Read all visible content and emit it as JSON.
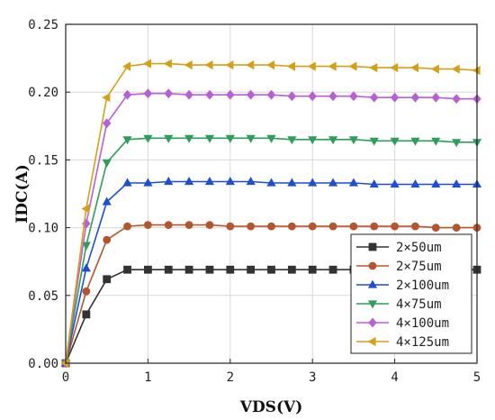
{
  "chart_data": {
    "type": "line",
    "xlabel": "VDS(V)",
    "ylabel": "IDC(A)",
    "xlim": [
      0,
      5
    ],
    "ylim": [
      0,
      0.25
    ],
    "xticks": [
      "0",
      "1",
      "2",
      "3",
      "4",
      "5"
    ],
    "yticks": [
      "0.00",
      "0.05",
      "0.10",
      "0.15",
      "0.20",
      "0.25"
    ],
    "grid": true,
    "legend_position": "bottom-right",
    "x": [
      0,
      0.25,
      0.5,
      0.75,
      1.0,
      1.25,
      1.5,
      1.75,
      2.0,
      2.25,
      2.5,
      2.75,
      3.0,
      3.25,
      3.5,
      3.75,
      4.0,
      4.25,
      4.5,
      4.75,
      5.0
    ],
    "series": [
      {
        "name": "2×50um",
        "color": "#333333",
        "marker": "square",
        "values": [
          0,
          0.036,
          0.062,
          0.069,
          0.069,
          0.069,
          0.069,
          0.069,
          0.069,
          0.069,
          0.069,
          0.069,
          0.069,
          0.069,
          0.069,
          0.069,
          0.069,
          0.069,
          0.069,
          0.069,
          0.069
        ]
      },
      {
        "name": "2×75um",
        "color": "#b5552e",
        "marker": "circle",
        "values": [
          0,
          0.053,
          0.091,
          0.101,
          0.102,
          0.102,
          0.102,
          0.102,
          0.101,
          0.101,
          0.101,
          0.101,
          0.101,
          0.101,
          0.101,
          0.101,
          0.101,
          0.101,
          0.1,
          0.1,
          0.1
        ]
      },
      {
        "name": "2×100um",
        "color": "#1f4fd1",
        "marker": "triangle-up",
        "values": [
          0,
          0.07,
          0.119,
          0.133,
          0.133,
          0.134,
          0.134,
          0.134,
          0.134,
          0.134,
          0.133,
          0.133,
          0.133,
          0.133,
          0.133,
          0.132,
          0.132,
          0.132,
          0.132,
          0.132,
          0.132
        ]
      },
      {
        "name": "4×75um",
        "color": "#2e9e5b",
        "marker": "triangle-down",
        "values": [
          0,
          0.087,
          0.148,
          0.165,
          0.166,
          0.166,
          0.166,
          0.166,
          0.166,
          0.166,
          0.166,
          0.165,
          0.165,
          0.165,
          0.165,
          0.164,
          0.164,
          0.164,
          0.164,
          0.163,
          0.163
        ]
      },
      {
        "name": "4×100um",
        "color": "#b85fd6",
        "marker": "diamond",
        "values": [
          0,
          0.103,
          0.177,
          0.198,
          0.199,
          0.199,
          0.198,
          0.198,
          0.198,
          0.198,
          0.198,
          0.197,
          0.197,
          0.197,
          0.197,
          0.196,
          0.196,
          0.196,
          0.196,
          0.195,
          0.195
        ]
      },
      {
        "name": "4×125um",
        "color": "#d4a017",
        "marker": "triangle-left",
        "values": [
          0,
          0.114,
          0.196,
          0.219,
          0.221,
          0.221,
          0.22,
          0.22,
          0.22,
          0.22,
          0.22,
          0.219,
          0.219,
          0.219,
          0.219,
          0.218,
          0.218,
          0.218,
          0.217,
          0.217,
          0.216
        ]
      }
    ]
  }
}
